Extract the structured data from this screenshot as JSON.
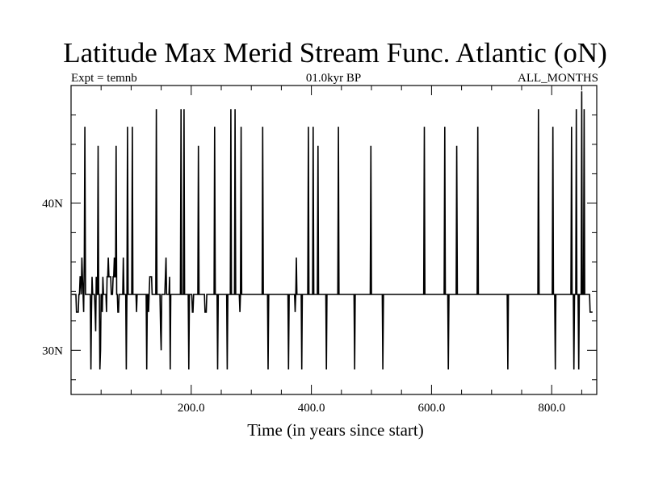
{
  "title": "Latitude Max Merid Stream Func. Atlantic (oN)",
  "subtitle_left": "Expt = temnb",
  "subtitle_center": "01.0kyr BP",
  "subtitle_right": "ALL_MONTHS",
  "chart_data": {
    "type": "line",
    "xlabel": "Time (in years since start)",
    "ylabel": "",
    "xlim": [
      0,
      875
    ],
    "ylim": [
      27,
      48
    ],
    "x_ticks": [
      200,
      400,
      600,
      800
    ],
    "x_tick_labels": [
      "200.0",
      "400.0",
      "600.0",
      "800.0"
    ],
    "y_ticks": [
      30,
      40
    ],
    "y_tick_labels": [
      "30N",
      "40N"
    ],
    "grid": false,
    "x_start": 1,
    "x_step": 1,
    "series": [
      {
        "values": [
          33.8,
          33.8,
          33.8,
          33.8,
          33.8,
          33.8,
          33.8,
          33.8,
          32.6,
          32.6,
          32.6,
          32.6,
          33.8,
          33.8,
          35.0,
          35.0,
          33.8,
          36.3,
          35.0,
          33.8,
          32.6,
          36.3,
          45.2,
          33.8,
          33.8,
          33.8,
          33.8,
          33.8,
          33.8,
          33.8,
          33.8,
          33.8,
          28.7,
          32.6,
          35.0,
          33.8,
          33.8,
          33.8,
          33.8,
          32.6,
          31.3,
          35.0,
          33.8,
          33.8,
          43.9,
          33.8,
          33.8,
          28.7,
          30.0,
          33.8,
          33.8,
          32.6,
          35.0,
          33.8,
          33.8,
          33.8,
          33.8,
          33.8,
          32.6,
          35.0,
          35.0,
          36.3,
          35.0,
          35.0,
          35.0,
          35.0,
          33.8,
          33.8,
          33.8,
          35.0,
          35.0,
          36.3,
          35.0,
          35.0,
          43.9,
          33.8,
          33.8,
          32.6,
          32.6,
          33.8,
          33.8,
          33.8,
          33.8,
          33.8,
          33.8,
          33.8,
          36.3,
          33.8,
          33.8,
          33.8,
          33.8,
          28.7,
          33.8,
          45.2,
          33.8,
          33.8,
          33.8,
          33.8,
          33.8,
          33.8,
          33.8,
          45.2,
          33.8,
          33.8,
          33.8,
          33.8,
          33.8,
          33.8,
          32.6,
          33.8,
          33.8,
          33.8,
          33.8,
          33.8,
          33.8,
          33.8,
          33.8,
          33.8,
          33.8,
          33.8,
          33.8,
          33.8,
          33.8,
          33.8,
          33.8,
          28.7,
          33.8,
          33.8,
          32.6,
          33.8,
          35.0,
          35.0,
          35.0,
          35.0,
          33.8,
          33.8,
          33.8,
          33.8,
          33.8,
          33.8,
          33.8,
          46.4,
          33.8,
          33.8,
          33.8,
          33.8,
          33.8,
          33.8,
          31.3,
          30.0,
          33.8,
          33.8,
          33.8,
          33.8,
          33.8,
          33.8,
          35.0,
          36.3,
          33.8,
          33.8,
          33.8,
          33.8,
          33.8,
          35.0,
          28.7,
          33.8,
          33.8,
          33.8,
          33.8,
          33.8,
          33.8,
          33.8,
          33.8,
          33.8,
          33.8,
          33.8,
          33.8,
          33.8,
          33.8,
          33.8,
          33.8,
          33.8,
          46.4,
          33.8,
          33.8,
          33.8,
          33.8,
          46.4,
          33.8,
          33.8,
          33.8,
          33.8,
          33.8,
          33.8,
          33.8,
          28.7,
          33.8,
          33.8,
          33.8,
          33.8,
          33.8,
          32.6,
          32.6,
          33.8,
          33.8,
          33.8,
          33.8,
          33.8,
          33.8,
          33.8,
          33.8,
          43.9,
          33.8,
          33.8,
          33.8,
          33.8,
          33.8,
          33.8,
          33.8,
          33.8,
          33.8,
          33.8,
          32.6,
          32.6,
          32.6,
          33.8,
          33.8,
          33.8,
          33.8,
          33.8,
          33.8,
          33.8,
          33.8,
          33.8,
          33.8,
          33.8,
          33.8,
          33.8,
          45.2,
          33.8,
          33.8,
          33.8,
          33.8,
          28.7,
          33.8,
          33.8,
          33.8,
          33.8,
          33.8,
          33.8,
          33.8,
          33.8,
          33.8,
          33.8,
          33.8,
          33.8,
          33.8,
          33.8,
          33.8,
          28.7,
          33.8,
          33.8,
          33.8,
          33.8,
          33.8,
          46.4,
          33.8,
          33.8,
          33.8,
          33.8,
          33.8,
          33.8,
          46.4,
          33.8,
          33.8,
          33.8,
          33.8,
          33.8,
          33.8,
          33.8,
          32.6,
          33.8,
          45.2,
          33.8,
          33.8,
          33.8,
          33.8,
          33.8,
          33.8,
          33.8,
          33.8,
          33.8,
          33.8,
          33.8,
          33.8,
          33.8,
          33.8,
          33.8,
          33.8,
          33.8,
          33.8,
          33.8,
          33.8,
          33.8,
          33.8,
          33.8,
          33.8,
          33.8,
          33.8,
          33.8,
          33.8,
          33.8,
          33.8,
          33.8,
          33.8,
          33.8,
          33.8,
          33.8,
          45.2,
          33.8,
          33.8,
          33.8,
          33.8,
          33.8,
          33.8,
          33.8,
          33.8,
          28.7,
          33.8,
          33.8,
          33.8,
          33.8,
          33.8,
          33.8,
          33.8,
          33.8,
          33.8,
          33.8,
          33.8,
          33.8,
          33.8,
          33.8,
          33.8,
          33.8,
          33.8,
          33.8,
          33.8,
          33.8,
          33.8,
          33.8,
          33.8,
          33.8,
          33.8,
          33.8,
          33.8,
          33.8,
          33.8,
          33.8,
          33.8,
          33.8,
          33.8,
          28.7,
          33.8,
          33.8,
          33.8,
          33.8,
          33.8,
          33.8,
          33.8,
          33.8,
          33.8,
          33.8,
          32.6,
          33.8,
          36.3,
          33.8,
          33.8,
          33.8,
          33.8,
          33.8,
          33.8,
          33.8,
          33.8,
          28.7,
          33.8,
          33.8,
          33.8,
          33.8,
          33.8,
          33.8,
          33.8,
          33.8,
          33.8,
          33.8,
          45.2,
          33.8,
          33.8,
          33.8,
          33.8,
          33.8,
          33.8,
          33.8,
          45.2,
          33.8,
          33.8,
          33.8,
          33.8,
          33.8,
          33.8,
          33.8,
          43.9,
          33.8,
          33.8,
          33.8,
          33.8,
          33.8,
          33.8,
          33.8,
          33.8,
          33.8,
          33.8,
          33.8,
          33.8,
          33.8,
          28.7,
          33.8,
          33.8,
          33.8,
          33.8,
          33.8,
          33.8,
          33.8,
          33.8,
          33.8,
          33.8,
          33.8,
          33.8,
          33.8,
          33.8,
          33.8,
          33.8,
          33.8,
          33.8,
          33.8,
          45.2,
          33.8,
          33.8,
          33.8,
          33.8,
          33.8,
          33.8,
          33.8,
          33.8,
          33.8,
          33.8,
          33.8,
          33.8,
          33.8,
          33.8,
          33.8,
          33.8,
          33.8,
          33.8,
          33.8,
          33.8,
          33.8,
          33.8,
          33.8,
          33.8,
          33.8,
          33.8,
          28.7,
          33.8,
          33.8,
          33.8,
          33.8,
          33.8,
          33.8,
          33.8,
          33.8,
          33.8,
          33.8,
          33.8,
          33.8,
          33.8,
          33.8,
          33.8,
          33.8,
          33.8,
          33.8,
          33.8,
          33.8,
          33.8,
          33.8,
          33.8,
          33.8,
          33.8,
          33.8,
          43.9,
          33.8,
          33.8,
          33.8,
          33.8,
          33.8,
          33.8,
          33.8,
          33.8,
          33.8,
          33.8,
          33.8,
          33.8,
          33.8,
          33.8,
          33.8,
          33.8,
          33.8,
          33.8,
          33.8,
          28.7,
          33.8,
          33.8,
          33.8,
          33.8,
          33.8,
          33.8,
          33.8,
          33.8,
          33.8,
          33.8,
          33.8,
          33.8,
          33.8,
          33.8,
          33.8,
          33.8,
          33.8,
          33.8,
          33.8,
          33.8,
          33.8,
          33.8,
          33.8,
          33.8,
          33.8,
          33.8,
          33.8,
          33.8,
          33.8,
          33.8,
          33.8,
          33.8,
          33.8,
          33.8,
          33.8,
          33.8,
          33.8,
          33.8,
          33.8,
          33.8,
          33.8,
          33.8,
          33.8,
          33.8,
          33.8,
          33.8,
          33.8,
          33.8,
          33.8,
          33.8,
          33.8,
          33.8,
          33.8,
          33.8,
          33.8,
          33.8,
          33.8,
          33.8,
          33.8,
          33.8,
          33.8,
          33.8,
          33.8,
          33.8,
          33.8,
          33.8,
          33.8,
          33.8,
          45.2,
          33.8,
          33.8,
          33.8,
          33.8,
          33.8,
          33.8,
          33.8,
          33.8,
          33.8,
          33.8,
          33.8,
          33.8,
          33.8,
          33.8,
          33.8,
          33.8,
          33.8,
          33.8,
          33.8,
          33.8,
          33.8,
          33.8,
          33.8,
          33.8,
          33.8,
          33.8,
          33.8,
          33.8,
          33.8,
          33.8,
          33.8,
          33.8,
          33.8,
          45.2,
          33.8,
          33.8,
          33.8,
          33.8,
          33.8,
          28.7,
          33.8,
          33.8,
          33.8,
          33.8,
          33.8,
          33.8,
          33.8,
          33.8,
          33.8,
          33.8,
          33.8,
          33.8,
          33.8,
          43.9,
          33.8,
          33.8,
          33.8,
          33.8,
          33.8,
          33.8,
          33.8,
          33.8,
          33.8,
          33.8,
          33.8,
          33.8,
          33.8,
          33.8,
          33.8,
          33.8,
          33.8,
          33.8,
          33.8,
          33.8,
          33.8,
          33.8,
          33.8,
          33.8,
          33.8,
          33.8,
          33.8,
          33.8,
          33.8,
          33.8,
          33.8,
          33.8,
          33.8,
          33.8,
          45.2,
          33.8,
          33.8,
          33.8,
          33.8,
          33.8,
          33.8,
          33.8,
          33.8,
          33.8,
          33.8,
          33.8,
          33.8,
          33.8,
          33.8,
          33.8,
          33.8,
          33.8,
          33.8,
          33.8,
          33.8,
          33.8,
          33.8,
          33.8,
          33.8,
          33.8,
          33.8,
          33.8,
          33.8,
          33.8,
          33.8,
          33.8,
          33.8,
          33.8,
          33.8,
          33.8,
          33.8,
          33.8,
          33.8,
          33.8,
          33.8,
          33.8,
          33.8,
          33.8,
          33.8,
          33.8,
          33.8,
          33.8,
          33.8,
          33.8,
          28.7,
          33.8,
          33.8,
          33.8,
          33.8,
          33.8,
          33.8,
          33.8,
          33.8,
          33.8,
          33.8,
          33.8,
          33.8,
          33.8,
          33.8,
          33.8,
          33.8,
          33.8,
          33.8,
          33.8,
          33.8,
          33.8,
          33.8,
          33.8,
          33.8,
          33.8,
          33.8,
          33.8,
          33.8,
          33.8,
          33.8,
          33.8,
          33.8,
          33.8,
          33.8,
          33.8,
          33.8,
          33.8,
          33.8,
          33.8,
          33.8,
          33.8,
          33.8,
          33.8,
          33.8,
          33.8,
          33.8,
          33.8,
          33.8,
          33.8,
          33.8,
          46.4,
          33.8,
          33.8,
          33.8,
          33.8,
          33.8,
          33.8,
          33.8,
          33.8,
          33.8,
          33.8,
          33.8,
          33.8,
          33.8,
          33.8,
          33.8,
          33.8,
          33.8,
          33.8,
          33.8,
          33.8,
          33.8,
          33.8,
          33.8,
          45.2,
          33.8,
          33.8,
          33.8,
          28.7,
          33.8,
          33.8,
          33.8,
          33.8,
          33.8,
          33.8,
          33.8,
          33.8,
          33.8,
          33.8,
          33.8,
          33.8,
          33.8,
          33.8,
          33.8,
          33.8,
          33.8,
          33.8,
          33.8,
          33.8,
          33.8,
          33.8,
          33.8,
          33.8,
          33.8,
          33.8,
          45.2,
          33.8,
          33.8,
          33.8,
          28.7,
          33.8,
          33.8,
          33.8,
          46.4,
          33.8,
          33.8,
          33.8,
          28.7,
          33.8,
          33.8,
          33.8,
          33.8,
          47.6,
          33.8,
          33.8,
          33.8,
          46.4,
          33.8,
          33.8,
          33.8,
          33.8,
          33.8,
          33.8,
          33.8,
          33.8,
          33.8,
          32.6,
          32.6,
          32.6,
          32.6,
          32.6
        ]
      }
    ]
  }
}
